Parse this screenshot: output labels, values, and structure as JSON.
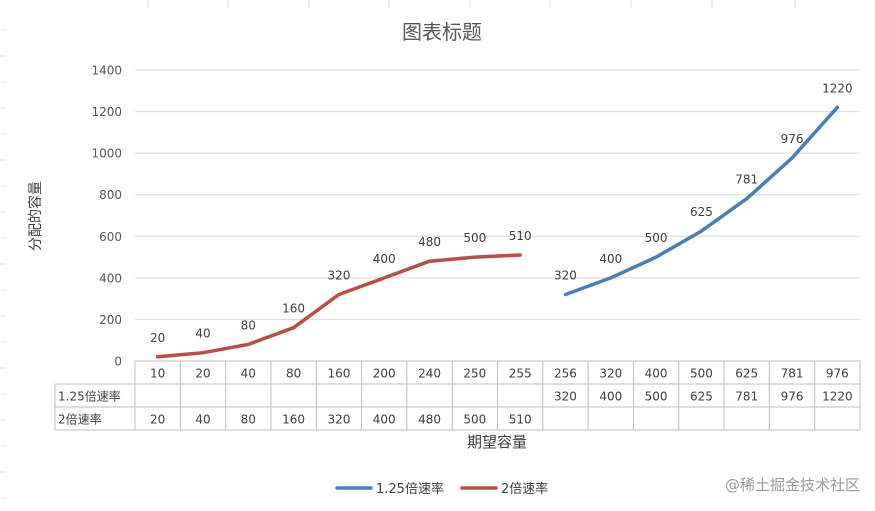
{
  "chart_data": {
    "type": "line",
    "title": "图表标题",
    "xlabel": "期望容量",
    "ylabel": "分配的容量",
    "ylim": [
      0,
      1400
    ],
    "yticks": [
      0,
      200,
      400,
      600,
      800,
      1000,
      1200,
      1400
    ],
    "grid": true,
    "legend_position": "bottom",
    "categories": [
      "10",
      "20",
      "40",
      "80",
      "160",
      "200",
      "240",
      "250",
      "255",
      "256",
      "320",
      "400",
      "500",
      "625",
      "781",
      "976"
    ],
    "series": [
      {
        "name": "1.25倍速率",
        "color": "#4A7EBB",
        "values": [
          null,
          null,
          null,
          null,
          null,
          null,
          null,
          null,
          null,
          320,
          400,
          500,
          625,
          781,
          976,
          1220
        ]
      },
      {
        "name": "2倍速率",
        "color": "#BE4B48",
        "values": [
          20,
          40,
          80,
          160,
          320,
          400,
          480,
          500,
          510,
          null,
          null,
          null,
          null,
          null,
          null,
          null
        ]
      }
    ]
  },
  "watermark": "@稀土掘金技术社区"
}
